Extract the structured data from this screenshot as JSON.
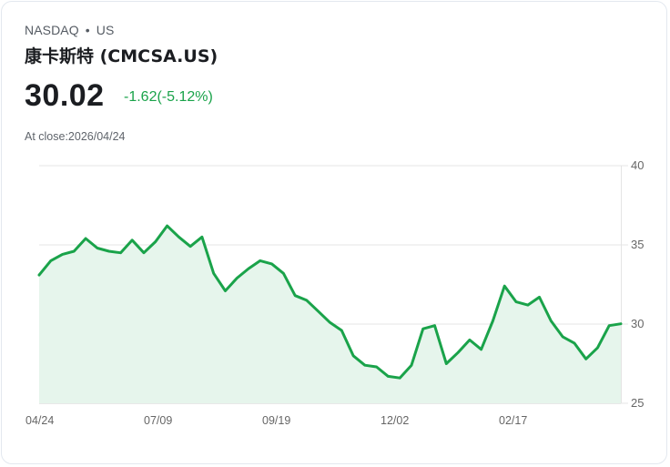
{
  "header": {
    "exchange": "NASDAQ",
    "separator": "•",
    "region": "US",
    "title": "康卡斯特 (CMCSA.US)",
    "price": "30.02",
    "change": "-1.62(-5.12%)",
    "close_label": "At close:2026/04/24"
  },
  "colors": {
    "line": "#1aa34a",
    "fill": "#e6f5ec",
    "change": "#1aa34a",
    "grid": "#e2e2e2"
  },
  "chart_data": {
    "type": "area",
    "title": "康卡斯特 (CMCSA.US)",
    "xlabel": "",
    "ylabel": "",
    "ylim": [
      25,
      40
    ],
    "yticks": [
      "40",
      "35",
      "30",
      "25"
    ],
    "y_axis_position": "right",
    "grid": true,
    "legend": "none",
    "xticks": [
      "04/24",
      "07/09",
      "09/19",
      "12/02",
      "02/17"
    ],
    "x": [
      0,
      2,
      4,
      6,
      8,
      10,
      12,
      14,
      16,
      18,
      20,
      22,
      24,
      26,
      28,
      30,
      32,
      34,
      36,
      38,
      40,
      42,
      44,
      46,
      48,
      50,
      52,
      54,
      56,
      58,
      60,
      62,
      64,
      66,
      68,
      70,
      72,
      74,
      76,
      78,
      80,
      82,
      84,
      86,
      88,
      90,
      92,
      94,
      96,
      98,
      100
    ],
    "values": [
      33.1,
      34.0,
      34.4,
      34.6,
      35.4,
      34.8,
      34.6,
      34.5,
      35.3,
      34.5,
      35.2,
      36.2,
      35.5,
      34.9,
      35.5,
      33.2,
      32.1,
      32.9,
      33.5,
      34.0,
      33.8,
      33.2,
      31.8,
      31.5,
      30.8,
      30.1,
      29.6,
      28.0,
      27.4,
      27.3,
      26.7,
      26.6,
      27.4,
      29.7,
      29.9,
      27.5,
      28.2,
      29.0,
      28.4,
      30.2,
      32.4,
      31.4,
      31.2,
      31.7,
      30.2,
      29.2,
      28.8,
      27.8,
      28.5,
      29.9,
      30.02
    ]
  },
  "axis": {
    "y_labels": [
      "40",
      "35",
      "30",
      "25"
    ],
    "x_labels": [
      "04/24",
      "07/09",
      "09/19",
      "12/02",
      "02/17"
    ]
  }
}
